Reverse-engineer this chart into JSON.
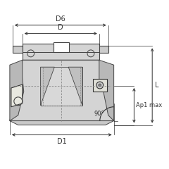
{
  "bg_color": "#ffffff",
  "body_fill": "#cccccc",
  "body_fill2": "#b8b8b8",
  "body_fill3": "#d4d4d4",
  "body_edge": "#444444",
  "dim_color": "#333333",
  "insert_fill": "#e0e0d8",
  "insert_edge": "#333333",
  "dashed_color": "#888888",
  "labels": {
    "D6": "D6",
    "D": "D",
    "D1": "D1",
    "L": "L",
    "Ap1max": "Ap1 max",
    "angle": "90°"
  },
  "font_size": 7,
  "small_font": 6
}
